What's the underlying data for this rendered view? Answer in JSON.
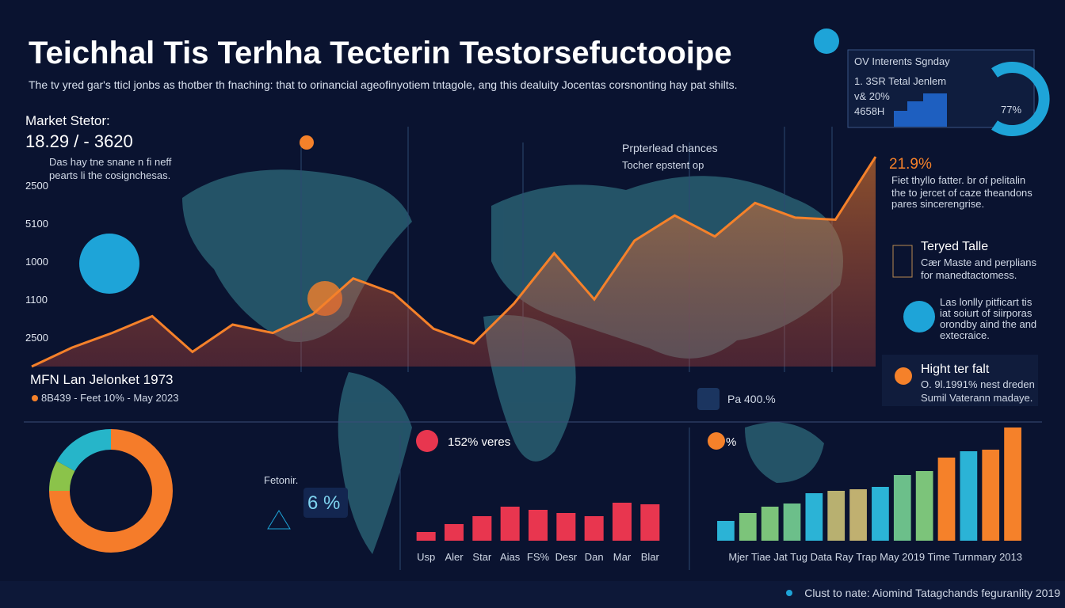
{
  "header": {
    "title": "Teichhal Tis Terhha Tecterin Testorsefuctooipe",
    "subtitle": "The tv yred gar's tticl jonbs as thotber th fnaching: that to orinancial ageofinyotiem tntagole, ang this dealuity Jocentas corsnonting hay pat shilts."
  },
  "top_card": {
    "title": "OV Interents Sgnday",
    "lines": [
      "1. 3SR Tetal Jenlem",
      "v& 20%",
      "4658H"
    ],
    "percent": "77%"
  },
  "market": {
    "label": "Market Stetor:",
    "value": "18.29 / - 3620",
    "lines": [
      "Das hay tne snane n fi neff",
      "pearts li the cosignchesas."
    ]
  },
  "side_labels": [
    "2500",
    "5100",
    "1000",
    "1100",
    "2500"
  ],
  "mfn": {
    "title": "MFN Lan Jelonket 1973",
    "detail": "8B439 - Feet 10% - May 2023"
  },
  "map_notes": {
    "title": "Prpterlead chances",
    "subtitle": "Tocher epstent op"
  },
  "right_panels": [
    {
      "title": "21.9%",
      "lines": [
        "Fiet thyllo fatter. br of pelitalin",
        "the to jercet of caze theandons",
        "pares sincerengrise."
      ]
    },
    {
      "title": "Teryed Talle",
      "lines": [
        "Cær Maste and perplians",
        "for manedtactomess."
      ]
    },
    {
      "title": "",
      "lines": [
        "Las lonlly pitficart tis",
        "iat soiurt of siirporas",
        "orondby aind the and",
        "extecraice."
      ]
    },
    {
      "title": "Hight ter falt",
      "lines": [
        "O. 9l.1991% nest dreden",
        "Sumil Vaterann madaye."
      ]
    }
  ],
  "badge": "Pa 400.%",
  "fetonir": {
    "label": "Fetonir.",
    "value": "6 %"
  },
  "footer": "Clust to nate: Aiomind Tatagchands feguranlity 2019",
  "chart_data": [
    {
      "type": "line",
      "color": "#f5812a",
      "ylim": [
        0,
        100
      ],
      "values": [
        0,
        9,
        16,
        24,
        7,
        20,
        16,
        25,
        42,
        35,
        18,
        11,
        30,
        54,
        32,
        60,
        72,
        62,
        78,
        71,
        70,
        100
      ]
    },
    {
      "type": "pie",
      "values": [
        75,
        8,
        17
      ],
      "colors": [
        "#f57c2a",
        "#8bc34a",
        "#26b5c9"
      ]
    },
    {
      "type": "bar",
      "title": "152% veres",
      "color": "#e8364f",
      "ylim": [
        0,
        100
      ],
      "categories": [
        "Usp",
        "Aler",
        "Star",
        "Aias",
        "FS%",
        "Desr",
        "Dan",
        "Mar",
        "Blar"
      ],
      "values": [
        11,
        21,
        31,
        43,
        39,
        35,
        31,
        48,
        46
      ]
    },
    {
      "type": "bar",
      "title": "%",
      "x_label": "Mjer Tiae Jat Tug Data Ray Trap May 2019 Time Turnmary 2013",
      "ylim": [
        0,
        150
      ],
      "values": [
        25,
        35,
        43,
        47,
        60,
        63,
        65,
        68,
        83,
        88,
        105,
        113,
        115,
        143
      ],
      "colors": [
        "#2bb3d6",
        "#7cc47a",
        "#7cc47a",
        "#6cbf8a",
        "#2bb3d6",
        "#b8b070",
        "#c0b070",
        "#2bb3d6",
        "#6cbf8a",
        "#7cc47a",
        "#f5812a",
        "#2bb3d6",
        "#f5812a",
        "#f5812a"
      ]
    }
  ]
}
